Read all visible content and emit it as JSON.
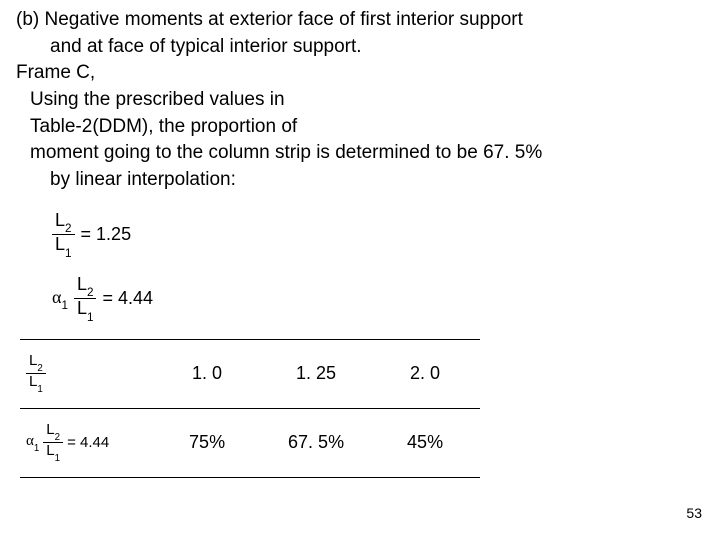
{
  "text": {
    "line1": "(b) Negative moments at exterior face of first interior support",
    "line2": "and at face of typical interior support.",
    "line3": "Frame C,",
    "line4": "Using the prescribed values in",
    "line5": "Table-2(DDM), the proportion of",
    "line6": "moment going to the column strip is determined to be 67. 5%",
    "line7": "by linear interpolation:"
  },
  "formula": {
    "L2": "L",
    "L2sub": "2",
    "L1": "L",
    "L1sub": "1",
    "eq1_rhs": "= 1.25",
    "alpha": "α",
    "alpha_sub": "1",
    "eq2_rhs": "= 4.44",
    "eq_row2": "= 4.44"
  },
  "table": {
    "row1": {
      "c1": "1. 0",
      "c2": "1. 25",
      "c3": "2. 0"
    },
    "row2": {
      "c1": "75%",
      "c2": "67. 5%",
      "c3": "45%"
    }
  },
  "page": "53",
  "colors": {
    "text": "#000000",
    "bg": "#ffffff",
    "rule": "#000000"
  }
}
